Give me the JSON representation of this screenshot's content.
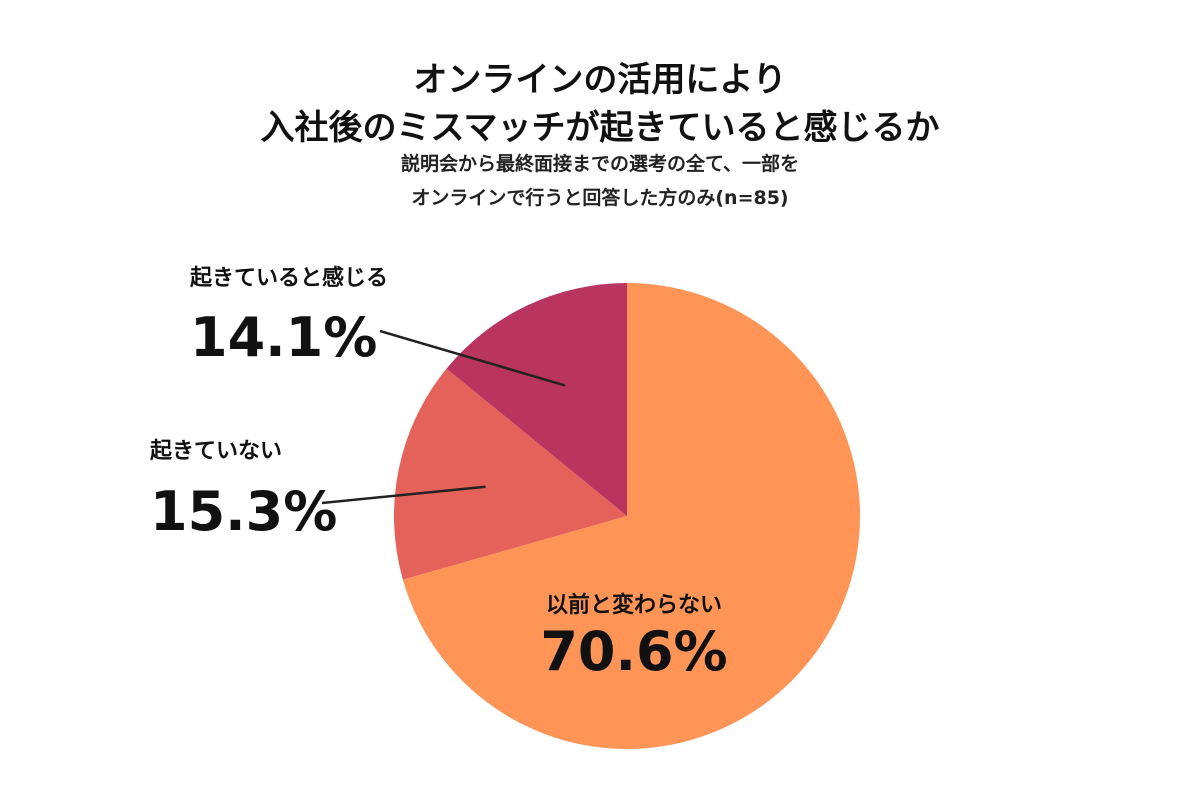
{
  "chart_data": {
    "type": "pie",
    "title_lines": [
      "オンラインの活用により",
      "入社後のミスマッチが起きていると感じるか"
    ],
    "subtitle_lines": [
      "説明会から最終面接までの選考の全て、一部を",
      "オンラインで行うと回答した方のみ(n=85)"
    ],
    "start_angle_deg": 0,
    "direction": "clockwise",
    "slices": [
      {
        "label": "以前と変わらない",
        "value": 70.6,
        "display": "70.6%",
        "color": "#FF9457"
      },
      {
        "label": "起きていない",
        "value": 15.3,
        "display": "15.3%",
        "color": "#E5625A"
      },
      {
        "label": "起きていると感じる",
        "value": 14.1,
        "display": "14.1%",
        "color": "#BA3460"
      }
    ],
    "legend": "none"
  }
}
